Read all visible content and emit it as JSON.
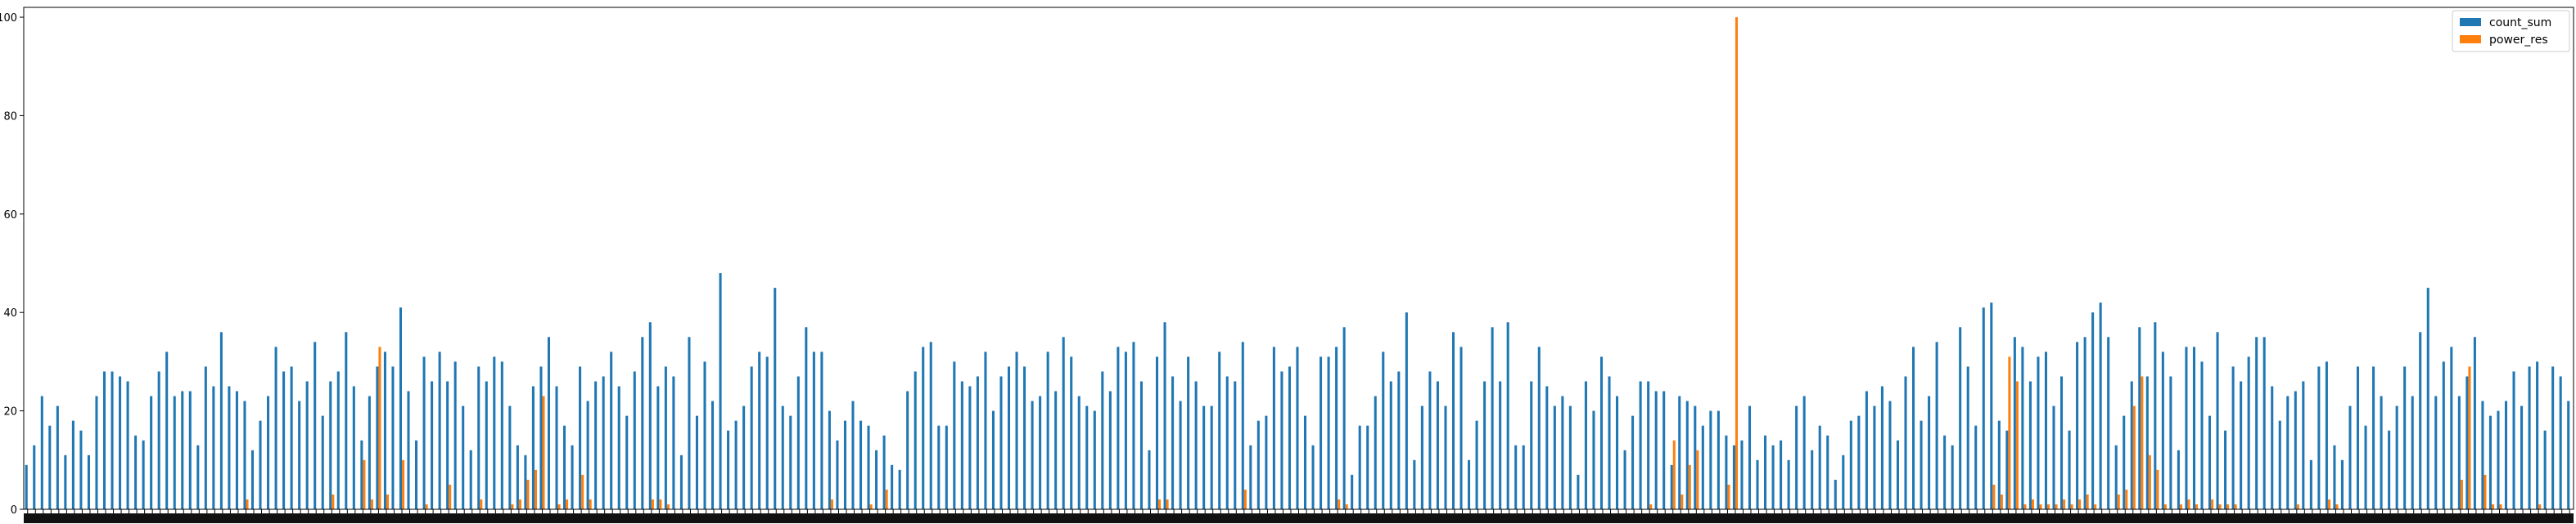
{
  "chart_data": {
    "type": "bar",
    "title": "",
    "xlabel": "",
    "ylabel": "",
    "ylim": [
      0,
      102
    ],
    "yticks": [
      0,
      20,
      40,
      60,
      80,
      100
    ],
    "ytick_labels": [
      "0",
      "20",
      "40",
      "60",
      "80",
      "100"
    ],
    "grid": false,
    "legend_position": "top-right",
    "series": [
      {
        "name": "count_sum",
        "color": "#1f77b4",
        "values": [
          9,
          13,
          23,
          17,
          21,
          11,
          18,
          16,
          11,
          23,
          28,
          28,
          27,
          26,
          15,
          14,
          23,
          28,
          32,
          23,
          24,
          24,
          13,
          29,
          25,
          36,
          25,
          24,
          22,
          12,
          18,
          23,
          33,
          28,
          29,
          22,
          26,
          34,
          19,
          26,
          28,
          36,
          25,
          14,
          23,
          29,
          32,
          29,
          41,
          24,
          14,
          31,
          26,
          32,
          26,
          30,
          21,
          12,
          29,
          26,
          31,
          30,
          21,
          13,
          11,
          25,
          29,
          35,
          25,
          17,
          13,
          29,
          22,
          26,
          27,
          32,
          25,
          19,
          28,
          35,
          38,
          25,
          29,
          27,
          11,
          35,
          19,
          30,
          22,
          48,
          16,
          18,
          21,
          29,
          32,
          31,
          45,
          21,
          19,
          27,
          37,
          32,
          32,
          20,
          14,
          18,
          22,
          18,
          17,
          12,
          15,
          9,
          8,
          24,
          28,
          33,
          34,
          17,
          17,
          30,
          26,
          25,
          27,
          32,
          20,
          27,
          29,
          32,
          29,
          22,
          23,
          32,
          24,
          35,
          31,
          23,
          21,
          20,
          28,
          24,
          33,
          32,
          34,
          26,
          12,
          31,
          38,
          27,
          22,
          31,
          26,
          21,
          21,
          32,
          27,
          26,
          34,
          13,
          18,
          19,
          33,
          28,
          29,
          33,
          19,
          13,
          31,
          31,
          33,
          37,
          7,
          17,
          17,
          23,
          32,
          26,
          28,
          40,
          10,
          21,
          28,
          26,
          21,
          36,
          33,
          10,
          18,
          26,
          37,
          26,
          38,
          13,
          13,
          26,
          33,
          25,
          21,
          23,
          21,
          7,
          26,
          20,
          31,
          27,
          23,
          12,
          19,
          26,
          26,
          24,
          24,
          9,
          23,
          22,
          21,
          17,
          20,
          20,
          15,
          13,
          14,
          21,
          10,
          15,
          13,
          14,
          10,
          21,
          23,
          12,
          17,
          15,
          6,
          11,
          18,
          19,
          24,
          21,
          25,
          22,
          14,
          27,
          33,
          18,
          23,
          34,
          15,
          13,
          37,
          29,
          17,
          41,
          42,
          18,
          16,
          35,
          33,
          26,
          31,
          32,
          21,
          27,
          16,
          34,
          35,
          40,
          42,
          35,
          13,
          19,
          26,
          37,
          27,
          38,
          32,
          27,
          12,
          33,
          33,
          30,
          19,
          36,
          16,
          29,
          26,
          31,
          35,
          35,
          25,
          18,
          23,
          24,
          26,
          10,
          29,
          30,
          13,
          10,
          21,
          29,
          17,
          29,
          23,
          16,
          21,
          29,
          23,
          36,
          45,
          23,
          30,
          33,
          23,
          27,
          35,
          22,
          19,
          20,
          22,
          28,
          21,
          29,
          30,
          16,
          29,
          27,
          22
        ]
      },
      {
        "name": "power_res",
        "color": "#ff7f0e",
        "values": [
          0,
          0,
          0,
          0,
          0,
          0,
          0,
          0,
          0,
          0,
          0,
          0,
          0,
          0,
          0,
          0,
          0,
          0,
          0,
          0,
          0,
          0,
          0,
          0,
          0,
          0,
          0,
          0,
          2,
          0,
          0,
          0,
          0,
          0,
          0,
          0,
          0,
          0,
          0,
          3,
          0,
          0,
          0,
          10,
          2,
          33,
          3,
          0,
          10,
          0,
          0,
          1,
          0,
          0,
          5,
          0,
          0,
          0,
          2,
          0,
          0,
          0,
          1,
          2,
          6,
          8,
          23,
          0,
          1,
          2,
          0,
          7,
          2,
          0,
          0,
          0,
          0,
          0,
          0,
          0,
          2,
          2,
          1,
          0,
          0,
          0,
          0,
          0,
          0,
          0,
          0,
          0,
          0,
          0,
          0,
          0,
          0,
          0,
          0,
          0,
          0,
          0,
          0,
          2,
          0,
          0,
          0,
          0,
          1,
          0,
          4,
          0,
          0,
          0,
          0,
          0,
          0,
          0,
          0,
          0,
          0,
          0,
          0,
          0,
          0,
          0,
          0,
          0,
          0,
          0,
          0,
          0,
          0,
          0,
          0,
          0,
          0,
          0,
          0,
          0,
          0,
          0,
          0,
          0,
          0,
          2,
          2,
          0,
          0,
          0,
          0,
          0,
          0,
          0,
          0,
          0,
          4,
          0,
          0,
          0,
          0,
          0,
          0,
          0,
          0,
          0,
          0,
          0,
          2,
          1,
          0,
          0,
          0,
          0,
          0,
          0,
          0,
          0,
          0,
          0,
          0,
          0,
          0,
          0,
          0,
          0,
          0,
          0,
          0,
          0,
          0,
          0,
          0,
          0,
          0,
          0,
          0,
          0,
          0,
          0,
          0,
          0,
          0,
          0,
          0,
          0,
          0,
          0,
          1,
          0,
          0,
          14,
          3,
          9,
          12,
          0,
          0,
          0,
          5,
          100,
          0,
          0,
          0,
          0,
          0,
          0,
          0,
          0,
          0,
          0,
          0,
          0,
          0,
          0,
          0,
          0,
          0,
          0,
          0,
          0,
          0,
          0,
          0,
          0,
          0,
          0,
          0,
          0,
          0,
          0,
          0,
          0,
          5,
          3,
          31,
          26,
          1,
          2,
          1,
          1,
          1,
          2,
          1,
          2,
          3,
          1,
          0,
          0,
          3,
          4,
          21,
          27,
          11,
          8,
          1,
          0,
          1,
          2,
          1,
          0,
          2,
          1,
          1,
          1,
          0,
          0,
          0,
          0,
          0,
          0,
          0,
          1,
          0,
          0,
          0,
          2,
          1,
          0,
          0,
          0,
          0,
          0,
          0,
          0,
          0,
          0,
          0,
          0,
          0,
          0,
          0,
          0,
          6,
          29,
          0,
          7,
          1,
          1,
          0,
          0,
          0,
          0,
          1,
          0,
          0,
          0,
          0,
          0,
          3,
          0,
          0,
          0,
          0,
          0,
          0,
          0,
          0,
          0,
          0,
          0,
          0,
          0,
          0,
          0,
          0,
          0,
          0,
          0
        ]
      }
    ]
  }
}
